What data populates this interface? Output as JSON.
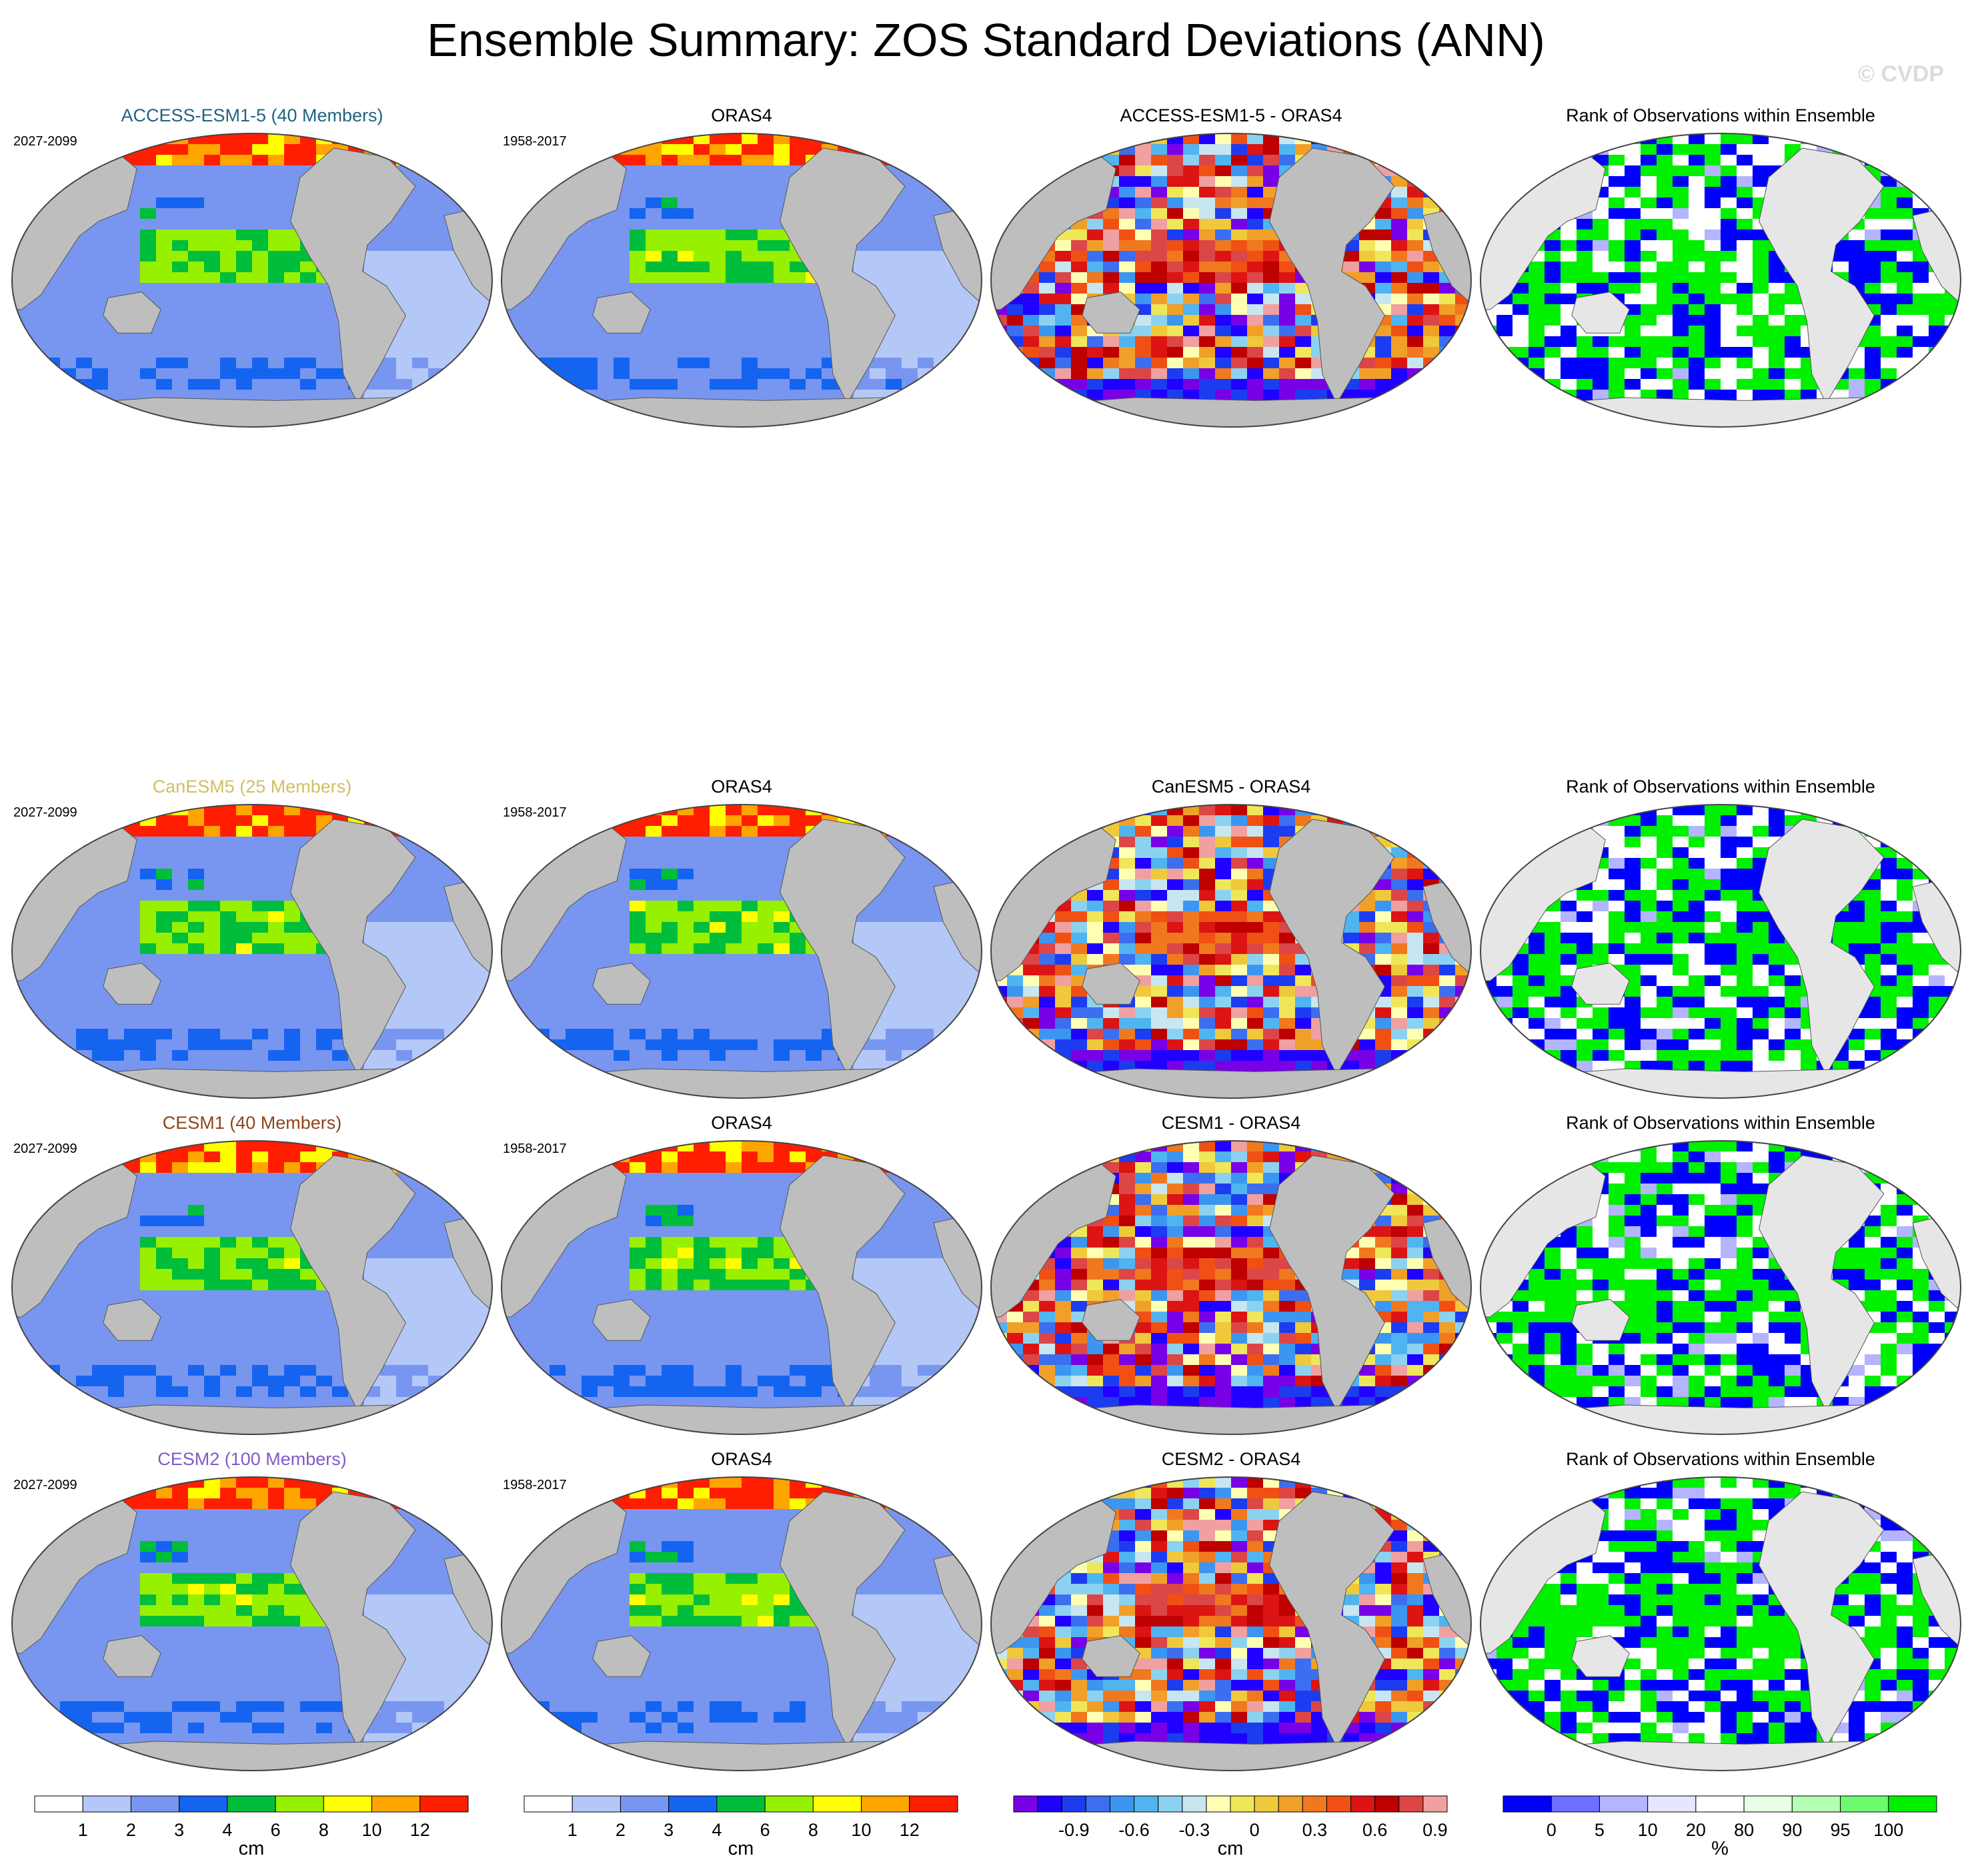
{
  "title": "Ensemble Summary: ZOS Standard Deviations (ANN)",
  "copyright": "© CVDP",
  "colors": {
    "seq": [
      "#ffffff",
      "#b4c8f8",
      "#7896f0",
      "#1464f0",
      "#00be3c",
      "#96f000",
      "#ffff00",
      "#ffa500",
      "#ff1e00"
    ],
    "diff": [
      "#7800e6",
      "#2000ff",
      "#1c3cf0",
      "#3c6ef0",
      "#3c96f0",
      "#50b4f0",
      "#8cd2f0",
      "#c8e6f0",
      "#ffffb4",
      "#f0e65a",
      "#f0c83c",
      "#f0a028",
      "#f0781e",
      "#f05014",
      "#dc1414",
      "#be0000",
      "#dc4646",
      "#f0a0a0"
    ],
    "rank": [
      "#0000ff",
      "#6e6eff",
      "#b4b4ff",
      "#e6e6ff",
      "#ffffff",
      "#e6ffe6",
      "#b4ffb4",
      "#6efa6e",
      "#00f000"
    ],
    "land": "#bebebe",
    "landice": "#e6e6e6"
  },
  "chart_data": {
    "type": "map-panels",
    "rows": [
      {
        "model": "ACCESS-ESM1-5 (40 Members)",
        "model_color": "#1e6482",
        "period": "2027-2099",
        "obs": "ORAS4",
        "obs_period": "1958-2017",
        "diff": "ACCESS-ESM1-5 - ORAS4",
        "rank": "Rank of Observations within Ensemble"
      },
      {
        "model": "CanESM5 (25 Members)",
        "model_color": "#d2be64",
        "period": "2027-2099",
        "obs": "ORAS4",
        "obs_period": "1958-2017",
        "diff": "CanESM5 - ORAS4",
        "rank": "Rank of Observations within Ensemble"
      },
      {
        "model": "CESM1 (40 Members)",
        "model_color": "#8c461e",
        "period": "2027-2099",
        "obs": "ORAS4",
        "obs_period": "1958-2017",
        "diff": "CESM1 - ORAS4",
        "rank": "Rank of Observations within Ensemble"
      },
      {
        "model": "CESM2 (100 Members)",
        "model_color": "#825ac8",
        "period": "2027-2099",
        "obs": "ORAS4",
        "obs_period": "1958-2017",
        "diff": "CESM2 - ORAS4",
        "rank": "Rank of Observations within Ensemble"
      }
    ],
    "colorbars": [
      {
        "kind": "seq",
        "labels": [
          "1",
          "2",
          "3",
          "4",
          "6",
          "8",
          "10",
          "12"
        ],
        "units": "cm"
      },
      {
        "kind": "seq",
        "labels": [
          "1",
          "2",
          "3",
          "4",
          "6",
          "8",
          "10",
          "12"
        ],
        "units": "cm"
      },
      {
        "kind": "diff",
        "labels": [
          "-0.9",
          "-0.6",
          "-0.3",
          "0",
          "0.3",
          "0.6",
          "0.9"
        ],
        "units": "cm"
      },
      {
        "kind": "rank",
        "labels": [
          "0",
          "5",
          "10",
          "20",
          "80",
          "90",
          "95",
          "100"
        ],
        "units": "%"
      }
    ]
  }
}
